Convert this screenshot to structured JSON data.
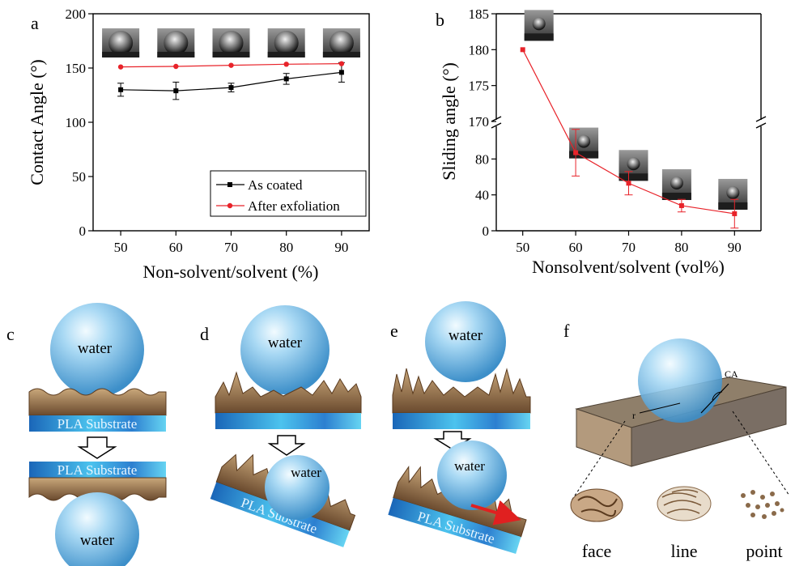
{
  "panel_letters": {
    "a": "a",
    "b": "b",
    "c": "c",
    "d": "d",
    "e": "e",
    "f": "f"
  },
  "chart_data": [
    {
      "type": "line",
      "panel": "a",
      "xlabel": "Non-solvent/solvent (%)",
      "ylabel": "Contact Angle (°)",
      "x": [
        50,
        60,
        70,
        80,
        90
      ],
      "xlim": [
        45,
        95
      ],
      "ylim": [
        0,
        200
      ],
      "xticks": [
        "50",
        "60",
        "70",
        "80",
        "90"
      ],
      "yticks": [
        "0",
        "50",
        "100",
        "150",
        "200"
      ],
      "series": [
        {
          "name": "As coated",
          "color": "#000000",
          "marker": "square",
          "values": [
            130,
            129,
            132,
            140,
            146
          ],
          "errors": [
            6,
            8,
            4,
            5,
            9
          ]
        },
        {
          "name": "After exfoliation",
          "color": "#e8232a",
          "marker": "circle",
          "values": [
            151,
            151.5,
            152.5,
            153.5,
            154
          ],
          "errors": [
            0,
            0,
            0,
            0,
            0
          ]
        }
      ],
      "legend": "bottom-right",
      "grid": false
    },
    {
      "type": "line",
      "panel": "b",
      "xlabel": "Nonsolvent/solvent (vol%)",
      "ylabel": "Sliding angle (°)",
      "x": [
        50,
        60,
        70,
        80,
        90
      ],
      "xlim": [
        45,
        95
      ],
      "broken_axis": {
        "lower": [
          0,
          120
        ],
        "upper": [
          170,
          185
        ]
      },
      "xticks": [
        "50",
        "60",
        "70",
        "80",
        "90"
      ],
      "yticks_lower": [
        "0",
        "40",
        "80"
      ],
      "yticks_upper": [
        "170",
        "175",
        "180",
        "185"
      ],
      "series": [
        {
          "name": "",
          "color": "#e8232a",
          "marker": "square",
          "values": [
            180,
            87,
            53,
            28,
            19
          ],
          "errors": [
            0,
            26,
            13,
            7,
            16
          ]
        }
      ],
      "grid": false
    }
  ],
  "schematics": {
    "water": "water",
    "pla_substrate": "PLA Substrate",
    "ca": "CA",
    "r": "r",
    "face": "face",
    "line": "line",
    "point": "point"
  }
}
